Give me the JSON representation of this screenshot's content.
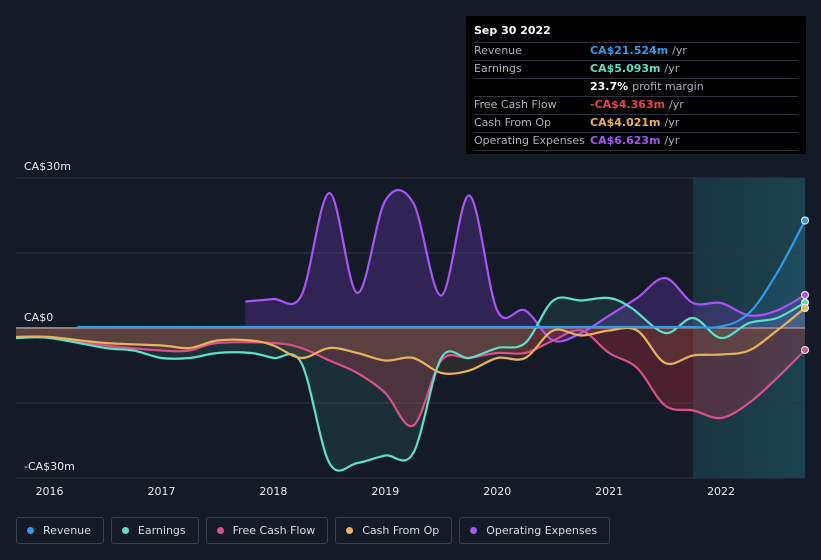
{
  "tooltip": {
    "date": "Sep 30 2022",
    "rows": [
      {
        "label": "Revenue",
        "value": "CA$21.524m",
        "unit": "/yr",
        "color": "#2e9ce8"
      },
      {
        "label": "Earnings",
        "value": "CA$5.093m",
        "unit": "/yr",
        "color": "#5ce0c8"
      },
      {
        "label": "",
        "value": "23.7%",
        "unit": "profit margin",
        "color": "#ffffff"
      },
      {
        "label": "Free Cash Flow",
        "value": "-CA$4.363m",
        "unit": "/yr",
        "color": "#e8434c"
      },
      {
        "label": "Cash From Op",
        "value": "CA$4.021m",
        "unit": "/yr",
        "color": "#e8b25c"
      },
      {
        "label": "Operating Expenses",
        "value": "CA$6.623m",
        "unit": "/yr",
        "color": "#a855f7"
      }
    ]
  },
  "chart_data": {
    "type": "area",
    "title": "",
    "xlabel": "",
    "ylabel": "",
    "ylim": [
      -30,
      30
    ],
    "xlim": [
      2015.7,
      2022.75
    ],
    "y_tick_labels": {
      "top": "CA$30m",
      "zero": "CA$0",
      "bottom": "-CA$30m"
    },
    "x_ticks": [
      "2016",
      "2017",
      "2018",
      "2019",
      "2020",
      "2021",
      "2022"
    ],
    "forecast_start": 2021.75,
    "series": [
      {
        "name": "Revenue",
        "color": "#2e9ce8",
        "points": [
          [
            2016.25,
            0.2
          ],
          [
            2017,
            0.2
          ],
          [
            2018,
            0.2
          ],
          [
            2019,
            0.2
          ],
          [
            2020,
            0.2
          ],
          [
            2021,
            0.2
          ],
          [
            2021.7,
            0.2
          ],
          [
            2022,
            0.3
          ],
          [
            2022.25,
            3
          ],
          [
            2022.5,
            11
          ],
          [
            2022.75,
            21.5
          ]
        ]
      },
      {
        "name": "Earnings",
        "color": "#5ce0c8",
        "points": [
          [
            2015.7,
            -2
          ],
          [
            2016,
            -2
          ],
          [
            2016.5,
            -4
          ],
          [
            2016.75,
            -4.5
          ],
          [
            2017,
            -6
          ],
          [
            2017.25,
            -6
          ],
          [
            2017.5,
            -5
          ],
          [
            2017.8,
            -5
          ],
          [
            2018,
            -6
          ],
          [
            2018.25,
            -7
          ],
          [
            2018.5,
            -27
          ],
          [
            2018.75,
            -27
          ],
          [
            2019,
            -25.5
          ],
          [
            2019.25,
            -25
          ],
          [
            2019.5,
            -6
          ],
          [
            2019.75,
            -6
          ],
          [
            2020,
            -4
          ],
          [
            2020.25,
            -3
          ],
          [
            2020.5,
            5.5
          ],
          [
            2020.75,
            5.5
          ],
          [
            2021,
            6
          ],
          [
            2021.2,
            4
          ],
          [
            2021.5,
            -1
          ],
          [
            2021.75,
            2
          ],
          [
            2022,
            -2
          ],
          [
            2022.25,
            1
          ],
          [
            2022.5,
            2
          ],
          [
            2022.75,
            5.1
          ]
        ]
      },
      {
        "name": "Free Cash Flow",
        "color": "#d9508a",
        "points": [
          [
            2015.7,
            -1.8
          ],
          [
            2016,
            -1.8
          ],
          [
            2016.5,
            -3.5
          ],
          [
            2017,
            -4.5
          ],
          [
            2017.25,
            -4.5
          ],
          [
            2017.5,
            -3
          ],
          [
            2018,
            -3
          ],
          [
            2018.25,
            -4
          ],
          [
            2018.5,
            -6.5
          ],
          [
            2018.75,
            -9
          ],
          [
            2019,
            -13
          ],
          [
            2019.25,
            -19.5
          ],
          [
            2019.5,
            -6.5
          ],
          [
            2019.75,
            -6
          ],
          [
            2020,
            -5
          ],
          [
            2020.25,
            -5
          ],
          [
            2020.5,
            -2.5
          ],
          [
            2020.75,
            -0.5
          ],
          [
            2021,
            -5
          ],
          [
            2021.25,
            -8
          ],
          [
            2021.5,
            -15.5
          ],
          [
            2021.75,
            -16.5
          ],
          [
            2022,
            -18
          ],
          [
            2022.25,
            -15
          ],
          [
            2022.5,
            -10
          ],
          [
            2022.75,
            -4.4
          ]
        ]
      },
      {
        "name": "Cash From Op",
        "color": "#e8b25c",
        "points": [
          [
            2015.7,
            -1.8
          ],
          [
            2016,
            -1.8
          ],
          [
            2016.5,
            -3
          ],
          [
            2017,
            -3.5
          ],
          [
            2017.25,
            -4
          ],
          [
            2017.5,
            -2.5
          ],
          [
            2017.8,
            -2.5
          ],
          [
            2018,
            -3.5
          ],
          [
            2018.25,
            -6
          ],
          [
            2018.5,
            -4
          ],
          [
            2018.75,
            -5
          ],
          [
            2019,
            -6.5
          ],
          [
            2019.25,
            -6
          ],
          [
            2019.5,
            -9
          ],
          [
            2019.75,
            -8.5
          ],
          [
            2020,
            -6
          ],
          [
            2020.25,
            -6
          ],
          [
            2020.5,
            -0.5
          ],
          [
            2020.75,
            -1.5
          ],
          [
            2021,
            -0.5
          ],
          [
            2021.25,
            -0.5
          ],
          [
            2021.5,
            -7
          ],
          [
            2021.75,
            -5.5
          ],
          [
            2022,
            -5.3
          ],
          [
            2022.25,
            -4.5
          ],
          [
            2022.5,
            -0.5
          ],
          [
            2022.75,
            4.0
          ]
        ]
      },
      {
        "name": "Operating Expenses",
        "color": "#a855f7",
        "points": [
          [
            2017.75,
            5.3
          ],
          [
            2018,
            5.8
          ],
          [
            2018.25,
            6.5
          ],
          [
            2018.5,
            27
          ],
          [
            2018.75,
            7
          ],
          [
            2019,
            25.5
          ],
          [
            2019.25,
            25
          ],
          [
            2019.5,
            6.5
          ],
          [
            2019.75,
            26.5
          ],
          [
            2020,
            3.5
          ],
          [
            2020.25,
            3.5
          ],
          [
            2020.5,
            -2.5
          ],
          [
            2020.75,
            -1
          ],
          [
            2021,
            2.5
          ],
          [
            2021.25,
            6
          ],
          [
            2021.5,
            10
          ],
          [
            2021.75,
            5
          ],
          [
            2022,
            5
          ],
          [
            2022.25,
            2.5
          ],
          [
            2022.5,
            3.5
          ],
          [
            2022.75,
            6.6
          ]
        ]
      }
    ]
  },
  "legend": [
    {
      "label": "Revenue",
      "color": "#2e9ce8"
    },
    {
      "label": "Earnings",
      "color": "#5ce0c8"
    },
    {
      "label": "Free Cash Flow",
      "color": "#d9508a"
    },
    {
      "label": "Cash From Op",
      "color": "#e8b25c"
    },
    {
      "label": "Operating Expenses",
      "color": "#a855f7"
    }
  ]
}
